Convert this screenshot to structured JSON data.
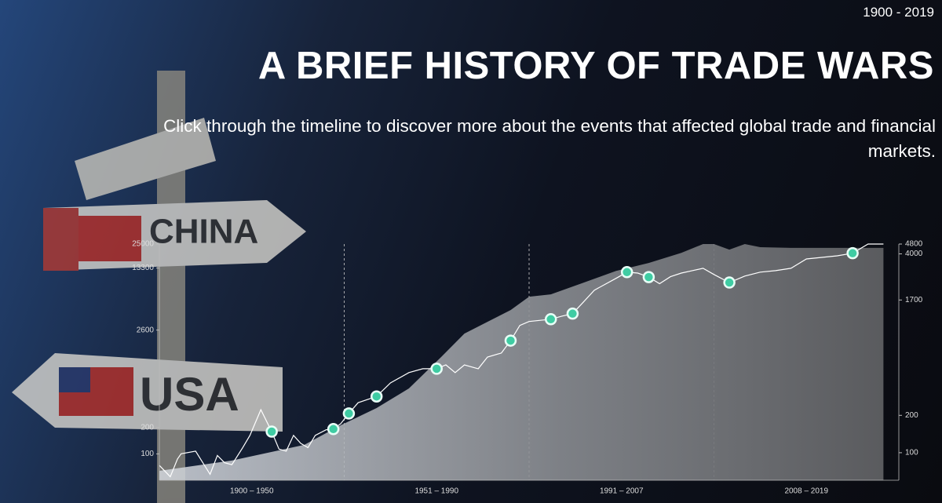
{
  "header": {
    "range": "1900 - 2019",
    "title": "A BRIEF HISTORY OF TRADE WARS",
    "subtitle": "Click through the timeline to discover more about the events that affected global trade and financial markets."
  },
  "background": {
    "signs": [
      "CHINA",
      "USA"
    ]
  },
  "chart_data": {
    "type": "line",
    "log_scale": true,
    "eras": [
      {
        "label": "1900 – 1950",
        "from": 1900,
        "to": 1950
      },
      {
        "label": "1951 – 1990",
        "from": 1951,
        "to": 1990
      },
      {
        "label": "1991 – 2007",
        "from": 1991,
        "to": 2007
      },
      {
        "label": "2008 – 2019",
        "from": 2008,
        "to": 2019
      }
    ],
    "ylim": [
      50,
      25000
    ],
    "yticks": [
      100,
      200,
      2600,
      13300,
      25000
    ],
    "y2lim": [
      60,
      4800
    ],
    "y2ticks": [
      100,
      200,
      1700,
      4000,
      4800
    ],
    "series": [
      {
        "kind": "area",
        "axis": "y",
        "color": "#b9bec6",
        "x": [
          1900,
          1920,
          1940,
          1950,
          1958,
          1965,
          1972,
          1977,
          1982,
          1987,
          1991,
          1993,
          1996,
          1999,
          2002,
          2005,
          2007,
          2008,
          2009,
          2010,
          2011,
          2013,
          2015,
          2017,
          2019
        ],
        "values": [
          64,
          84,
          127,
          212,
          334,
          560,
          1280,
          2370,
          3230,
          4400,
          6260,
          6650,
          9060,
          12330,
          15200,
          19800,
          25000,
          25000,
          21600,
          25000,
          23000,
          22600,
          22600,
          22600,
          22600
        ]
      },
      {
        "kind": "line",
        "axis": "y2",
        "color": "#ffffff",
        "x": [
          1900,
          1903,
          1905,
          1906,
          1910,
          1914,
          1916,
          1918,
          1920,
          1923,
          1925,
          1928,
          1931,
          1933,
          1935,
          1937,
          1939,
          1941,
          1943,
          1946,
          1948,
          1950,
          1952,
          1954,
          1958,
          1961,
          1965,
          1968,
          1971,
          1973,
          1975,
          1977,
          1980,
          1982,
          1985,
          1987,
          1989,
          1991,
          1993,
          1994,
          1995,
          1996,
          1997,
          1999,
          2000,
          2001,
          2002,
          2003,
          2004,
          2005,
          2006,
          2007,
          2008,
          2009,
          2010,
          2011,
          2012,
          2013,
          2014,
          2015,
          2016,
          2017,
          2018,
          2019
        ],
        "values": [
          79,
          64,
          89,
          98,
          103,
          67,
          95,
          83,
          80,
          110,
          138,
          222,
          148,
          107,
          103,
          138,
          119,
          110,
          138,
          153,
          155,
          171,
          207,
          253,
          284,
          365,
          442,
          475,
          475,
          510,
          442,
          510,
          475,
          590,
          635,
          800,
          1060,
          1140,
          1190,
          1260,
          1320,
          1640,
          2040,
          2540,
          2850,
          2800,
          2600,
          2300,
          2620,
          2800,
          2930,
          3060,
          2730,
          2350,
          2650,
          2850,
          2930,
          3060,
          3640,
          3750,
          3860,
          4050,
          4800,
          4800
        ]
      }
    ],
    "events": {
      "axis": "y2",
      "color": "#3fcca3",
      "x": [
        1931,
        1948,
        1952,
        1958,
        1971,
        1987,
        1993,
        1995,
        2000,
        2002,
        2009,
        2017
      ],
      "values": [
        148,
        155,
        207,
        284,
        475,
        800,
        1190,
        1320,
        2850,
        2600,
        2350,
        4050
      ]
    }
  }
}
